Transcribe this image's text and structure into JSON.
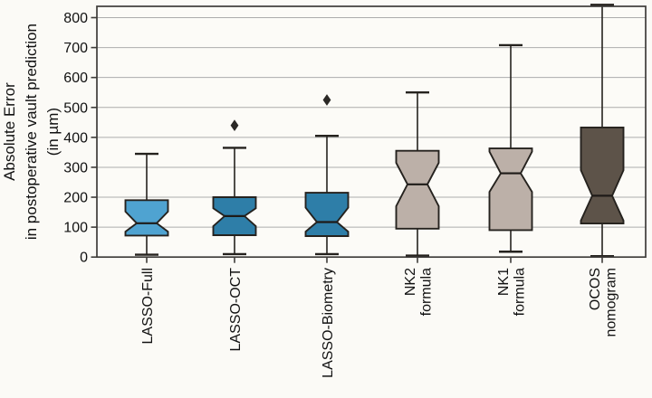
{
  "chart_data": {
    "type": "box",
    "title": "",
    "xlabel": "",
    "ylabel": "Absolute Error in postoperative vault prediction (in µm)",
    "ylabel_lines": [
      "Absolute Error",
      "in postoperative vault prediction",
      "(in µm)"
    ],
    "ylim": [
      0,
      850
    ],
    "yticks": [
      0,
      100,
      200,
      300,
      400,
      500,
      600,
      700,
      800
    ],
    "grid": true,
    "legend": "none",
    "categories": [
      "LASSO-Full",
      "LASSO-OCT",
      "LASSO-Biometry",
      "NK2 formula",
      "NK1 formula",
      "OCOS nomogram"
    ],
    "category_label_lines": [
      [
        "LASSO-Full"
      ],
      [
        "LASSO-OCT"
      ],
      [
        "LASSO-Biometry"
      ],
      [
        "NK2",
        "formula"
      ],
      [
        "NK1",
        "formula"
      ],
      [
        "OCOS",
        "nomogram"
      ]
    ],
    "boxes": [
      {
        "name": "LASSO-Full",
        "whisker_low": 8,
        "q1": 72,
        "notch_low": 85,
        "median": 113,
        "notch_high": 152,
        "q3": 190,
        "whisker_high": 345,
        "outliers": [],
        "fill": "#4FA3D1"
      },
      {
        "name": "LASSO-OCT",
        "whisker_low": 10,
        "q1": 73,
        "notch_low": 103,
        "median": 137,
        "notch_high": 163,
        "q3": 200,
        "whisker_high": 365,
        "outliers": [
          440
        ],
        "fill": "#2E7EA8"
      },
      {
        "name": "LASSO-Biometry",
        "whisker_low": 10,
        "q1": 70,
        "notch_low": 85,
        "median": 117,
        "notch_high": 165,
        "q3": 215,
        "whisker_high": 405,
        "outliers": [
          525
        ],
        "fill": "#2E7EA8"
      },
      {
        "name": "NK2 formula",
        "whisker_low": 5,
        "q1": 95,
        "notch_low": 170,
        "median": 243,
        "notch_high": 315,
        "q3": 355,
        "whisker_high": 550,
        "outliers": [],
        "fill": "#BCB0A8"
      },
      {
        "name": "NK1 formula",
        "whisker_low": 18,
        "q1": 90,
        "notch_low": 218,
        "median": 280,
        "notch_high": 352,
        "q3": 363,
        "whisker_high": 708,
        "outliers": [],
        "fill": "#BCB0A8"
      },
      {
        "name": "OCOS nomogram",
        "whisker_low": 3,
        "q1": 112,
        "notch_low": 122,
        "median": 205,
        "notch_high": 290,
        "q3": 433,
        "whisker_high": 843,
        "outliers": [],
        "fill": "#5D5349"
      }
    ],
    "colors": {
      "stroke": "#25221E",
      "median": "#1E1B18",
      "grid": "#ACACAC",
      "axis": "#3E3C39",
      "text": "#111111",
      "outlier": "#2B2926",
      "background": "#FBFAF6",
      "plot_background": "#FCFBF7"
    }
  }
}
